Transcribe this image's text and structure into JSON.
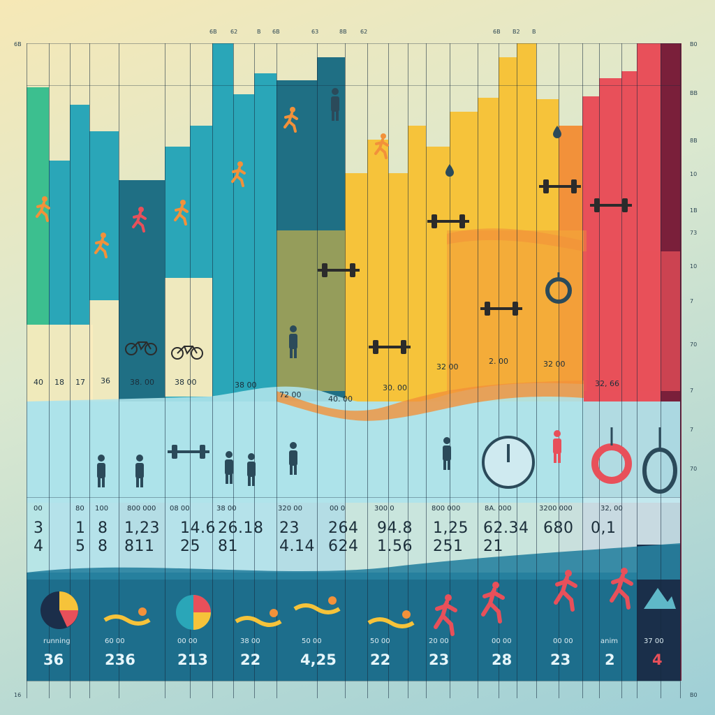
{
  "colors": {
    "teal_dark": "#1f6f84",
    "teal": "#2aa6b8",
    "green": "#3cbf8f",
    "yellow": "#f6c33a",
    "orange": "#f2913a",
    "red": "#e8505a",
    "maroon": "#7a1f3a",
    "wave_light": "#aee3ea",
    "band_dark": "#1d6e8c",
    "person": "#2b4a5a"
  },
  "icons": [
    "runner-icon",
    "bicycle-icon",
    "dumbbell-icon",
    "person-icon",
    "weightlifter-icon",
    "clock-icon",
    "ring-icon",
    "swimmer-icon",
    "pie-icon",
    "mountain-icon",
    "drop-icon",
    "barbell-icon"
  ],
  "top_ticks": [
    "6B",
    "62",
    "B",
    "6B",
    "63",
    "8B",
    "62",
    "6B",
    "B2",
    "B"
  ],
  "left_ticks": [
    "6B",
    "16"
  ],
  "right_ticks": [
    "B0",
    "BB",
    "8B",
    "10",
    "1B",
    "73",
    "10",
    "7",
    "70",
    "7",
    "7",
    "70",
    "B0"
  ],
  "mid_labels": [
    "40",
    "18",
    "17",
    "36",
    "38. 00",
    "38 00",
    "38 00",
    "72 00",
    "40. 00",
    "30. 00",
    "32 00",
    "2. 00",
    "32 00",
    "32, 66"
  ],
  "small_headers": [
    "00",
    "80",
    "100",
    "800 000",
    "08 00",
    "38 00",
    "320 00",
    "00 0",
    "300 0",
    "800 000",
    "8A. 000",
    "3200 000",
    "32, 00"
  ],
  "big_values_top": [
    "3",
    "1",
    "8",
    "1,23",
    "14.6",
    "26.18",
    "23",
    "264",
    "94.8",
    "1,25",
    "62.34",
    "680",
    "0,1"
  ],
  "big_values_bottom": [
    "4",
    "5",
    "8",
    "811",
    "25",
    "81",
    "4.14",
    "624",
    "1.56",
    "251",
    "21",
    "",
    ""
  ],
  "bottom_small": [
    "running",
    "60 00",
    "00 00",
    "38 00",
    "50 00",
    "50 00",
    "20 00",
    "00 00",
    "00 00",
    "anim",
    "37 00"
  ],
  "bottom_big": [
    "36",
    "236",
    "213",
    "22",
    "4,25",
    "22",
    "23",
    "28",
    "23",
    "2",
    "4"
  ]
}
